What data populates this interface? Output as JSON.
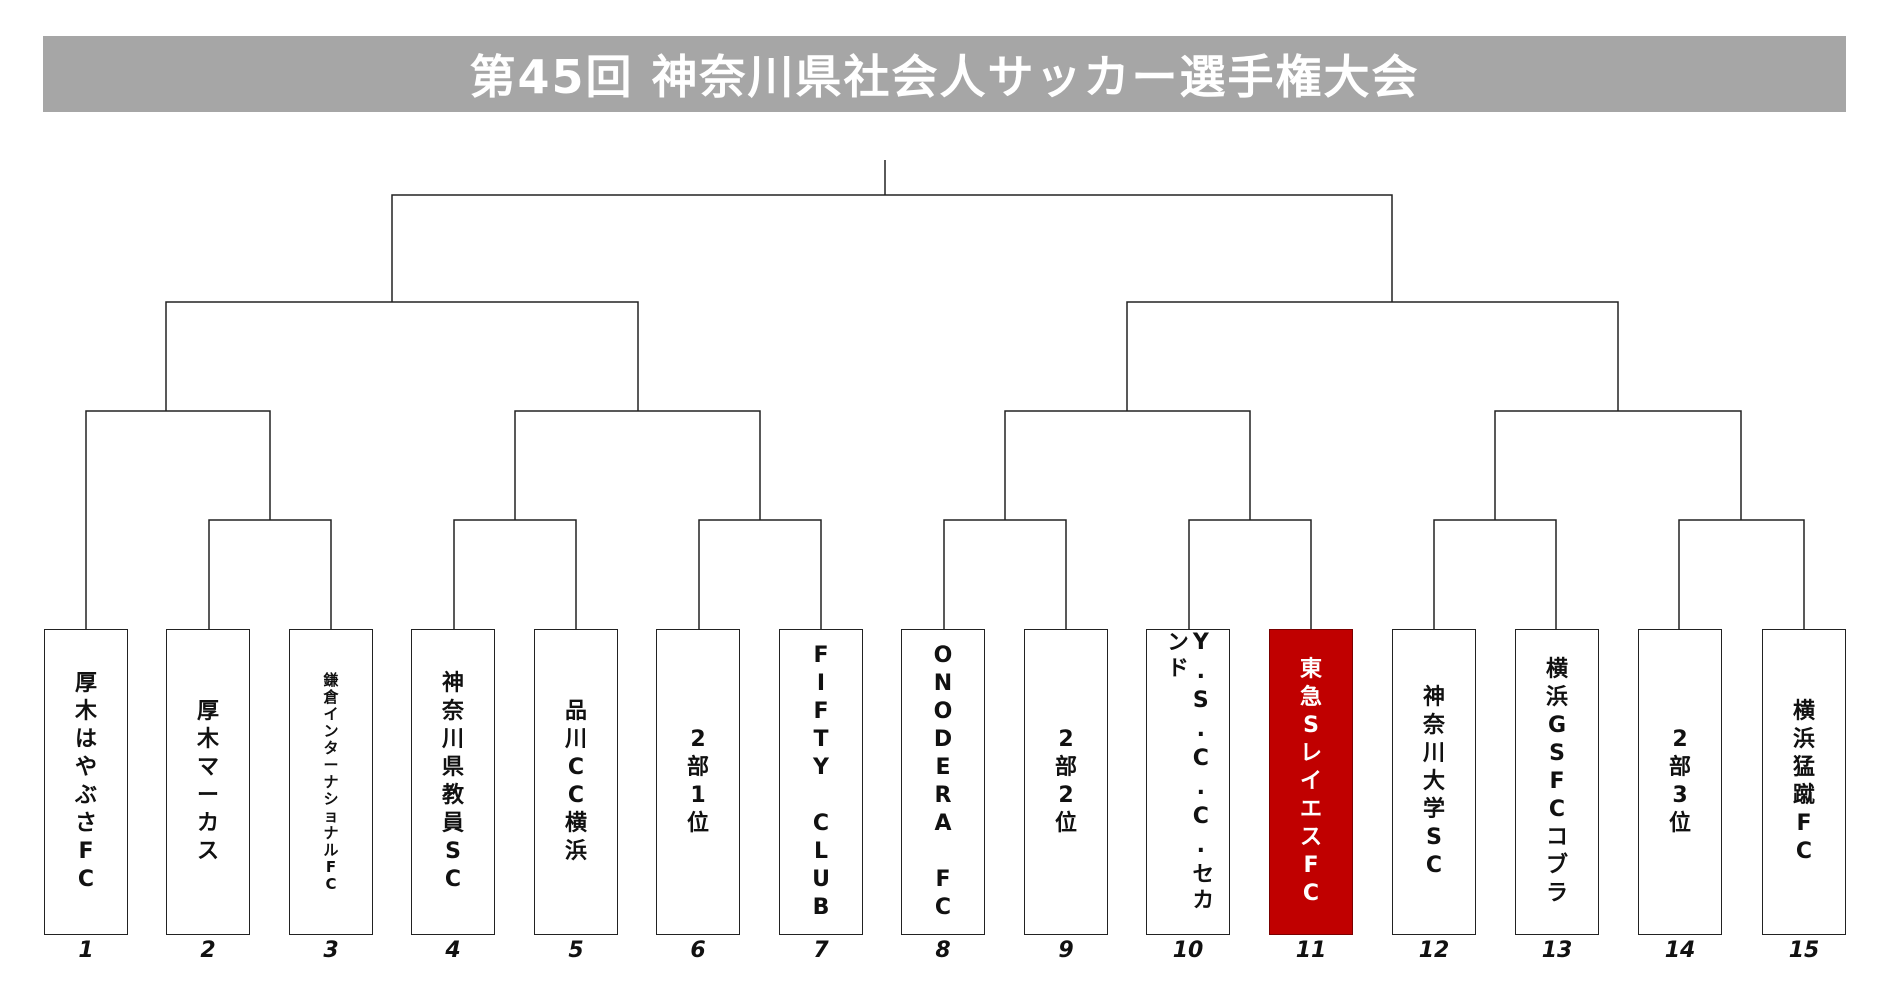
{
  "title": "第45回 神奈川県社会人サッカー選手権大会",
  "highlight_color": "#c00000",
  "teams": [
    {
      "seed": "1",
      "name": "厚木はやぶさFC"
    },
    {
      "seed": "2",
      "name": "厚木マーカス"
    },
    {
      "seed": "3",
      "name": "鎌倉インターナショナルFC"
    },
    {
      "seed": "4",
      "name": "神奈川県教員SC"
    },
    {
      "seed": "5",
      "name": "品川CC横浜"
    },
    {
      "seed": "6",
      "name": "2部1位"
    },
    {
      "seed": "7",
      "name": "FIFTY CLUB"
    },
    {
      "seed": "8",
      "name": "ONODERA FC"
    },
    {
      "seed": "9",
      "name": "2部2位"
    },
    {
      "seed": "10",
      "name": "Y.S.C.C.セカンド"
    },
    {
      "seed": "11",
      "name": "東急SレイエスFC",
      "highlight": true
    },
    {
      "seed": "12",
      "name": "神奈川大学SC"
    },
    {
      "seed": "13",
      "name": "横浜GSFCコブラ"
    },
    {
      "seed": "14",
      "name": "2部3位"
    },
    {
      "seed": "15",
      "name": "横浜猛蹴FC"
    }
  ]
}
